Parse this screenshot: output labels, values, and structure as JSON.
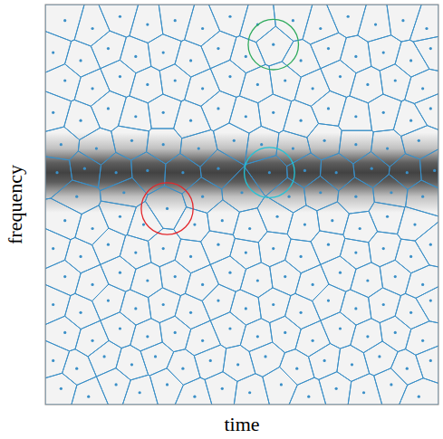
{
  "chart_data": {
    "type": "voronoi",
    "x_label": "time",
    "y_label": "frequency",
    "xlim": [
      0,
      1
    ],
    "ylim": [
      0,
      1
    ],
    "tick_labels": false,
    "color": "#3a8fc7",
    "signal": {
      "frequency": 0.58,
      "width": 0.05
    },
    "points": {
      "x": [
        0.04,
        0.11,
        0.18,
        0.24,
        0.31,
        0.38,
        0.45,
        0.52,
        0.6,
        0.67,
        0.74,
        0.81,
        0.88,
        0.95,
        0.02,
        0.08,
        0.15,
        0.22,
        0.28,
        0.35,
        0.42,
        0.49,
        0.56,
        0.64,
        0.71,
        0.78,
        0.85,
        0.92,
        0.98,
        0.05,
        0.12,
        0.19,
        0.26,
        0.33,
        0.4,
        0.47,
        0.54,
        0.61,
        0.68,
        0.75,
        0.82,
        0.89,
        0.96,
        0.02,
        0.09,
        0.16,
        0.23,
        0.3,
        0.37,
        0.44,
        0.51,
        0.58,
        0.65,
        0.72,
        0.79,
        0.86,
        0.93,
        0.98,
        0.05,
        0.12,
        0.19,
        0.26,
        0.33,
        0.4,
        0.47,
        0.54,
        0.61,
        0.68,
        0.75,
        0.82,
        0.89,
        0.96,
        0.02,
        0.09,
        0.16,
        0.23,
        0.3,
        0.37,
        0.44,
        0.51,
        0.58,
        0.65,
        0.72,
        0.79,
        0.86,
        0.93,
        0.98,
        0.05,
        0.12,
        0.19,
        0.25,
        0.38,
        0.45,
        0.52,
        0.59,
        0.66,
        0.73,
        0.8,
        0.87,
        0.94,
        0.31,
        0.08,
        0.2,
        0.4,
        0.5,
        0.62,
        0.7,
        0.79,
        0.88,
        0.96,
        0.03,
        0.1,
        0.18,
        0.26,
        0.35,
        0.44,
        0.57,
        0.66,
        0.74,
        0.83,
        0.92,
        0.99,
        0.04,
        0.13,
        0.22,
        0.3,
        0.39,
        0.48,
        0.55,
        0.63,
        0.71,
        0.79,
        0.87,
        0.95,
        0.02,
        0.09,
        0.16,
        0.23,
        0.3,
        0.37,
        0.44,
        0.51,
        0.58,
        0.65,
        0.72,
        0.79,
        0.86,
        0.93,
        0.98,
        0.05,
        0.12,
        0.19,
        0.26,
        0.33,
        0.4,
        0.47,
        0.54,
        0.61,
        0.68,
        0.75,
        0.82,
        0.89,
        0.96,
        0.02,
        0.09,
        0.16,
        0.23,
        0.3,
        0.37,
        0.44,
        0.51,
        0.58,
        0.65,
        0.72,
        0.79,
        0.86,
        0.93,
        0.98,
        0.05,
        0.12,
        0.19,
        0.26,
        0.33,
        0.4,
        0.47,
        0.54,
        0.63,
        0.7,
        0.77,
        0.84,
        0.91,
        0.97
      ],
      "y": [
        0.04,
        0.02,
        0.05,
        0.03,
        0.05,
        0.02,
        0.04,
        0.03,
        0.05,
        0.02,
        0.04,
        0.03,
        0.05,
        0.02,
        0.11,
        0.09,
        0.12,
        0.1,
        0.12,
        0.09,
        0.11,
        0.1,
        0.12,
        0.09,
        0.11,
        0.1,
        0.12,
        0.09,
        0.11,
        0.18,
        0.16,
        0.19,
        0.17,
        0.18,
        0.16,
        0.19,
        0.17,
        0.18,
        0.16,
        0.19,
        0.17,
        0.18,
        0.16,
        0.25,
        0.23,
        0.26,
        0.24,
        0.25,
        0.23,
        0.26,
        0.24,
        0.25,
        0.23,
        0.26,
        0.24,
        0.25,
        0.23,
        0.26,
        0.32,
        0.3,
        0.33,
        0.31,
        0.32,
        0.3,
        0.33,
        0.31,
        0.32,
        0.3,
        0.33,
        0.31,
        0.32,
        0.3,
        0.39,
        0.37,
        0.4,
        0.38,
        0.39,
        0.37,
        0.4,
        0.38,
        0.39,
        0.37,
        0.4,
        0.38,
        0.39,
        0.37,
        0.4,
        0.46,
        0.44,
        0.47,
        0.45,
        0.45,
        0.46,
        0.44,
        0.47,
        0.45,
        0.46,
        0.44,
        0.47,
        0.45,
        0.49,
        0.52,
        0.53,
        0.52,
        0.53,
        0.52,
        0.53,
        0.52,
        0.53,
        0.52,
        0.58,
        0.59,
        0.58,
        0.585,
        0.58,
        0.59,
        0.58,
        0.585,
        0.58,
        0.59,
        0.58,
        0.585,
        0.65,
        0.64,
        0.66,
        0.65,
        0.64,
        0.66,
        0.65,
        0.64,
        0.66,
        0.65,
        0.64,
        0.66,
        0.73,
        0.71,
        0.74,
        0.72,
        0.73,
        0.71,
        0.74,
        0.72,
        0.73,
        0.71,
        0.74,
        0.72,
        0.73,
        0.71,
        0.74,
        0.81,
        0.79,
        0.82,
        0.8,
        0.81,
        0.79,
        0.82,
        0.8,
        0.81,
        0.79,
        0.82,
        0.8,
        0.81,
        0.79,
        0.88,
        0.86,
        0.89,
        0.87,
        0.88,
        0.86,
        0.89,
        0.87,
        0.9,
        0.86,
        0.89,
        0.87,
        0.88,
        0.86,
        0.89,
        0.96,
        0.94,
        0.97,
        0.95,
        0.96,
        0.94,
        0.97,
        0.95,
        0.96,
        0.94,
        0.97,
        0.95,
        0.96,
        0.94
      ]
    },
    "circles": [
      {
        "x": 0.31,
        "y": 0.49,
        "r": 0.066,
        "color": "#e3262b"
      },
      {
        "x": 0.57,
        "y": 0.58,
        "r": 0.064,
        "color": "#22c3d6"
      },
      {
        "x": 0.58,
        "y": 0.9,
        "r": 0.064,
        "color": "#2eaa5c"
      }
    ]
  }
}
